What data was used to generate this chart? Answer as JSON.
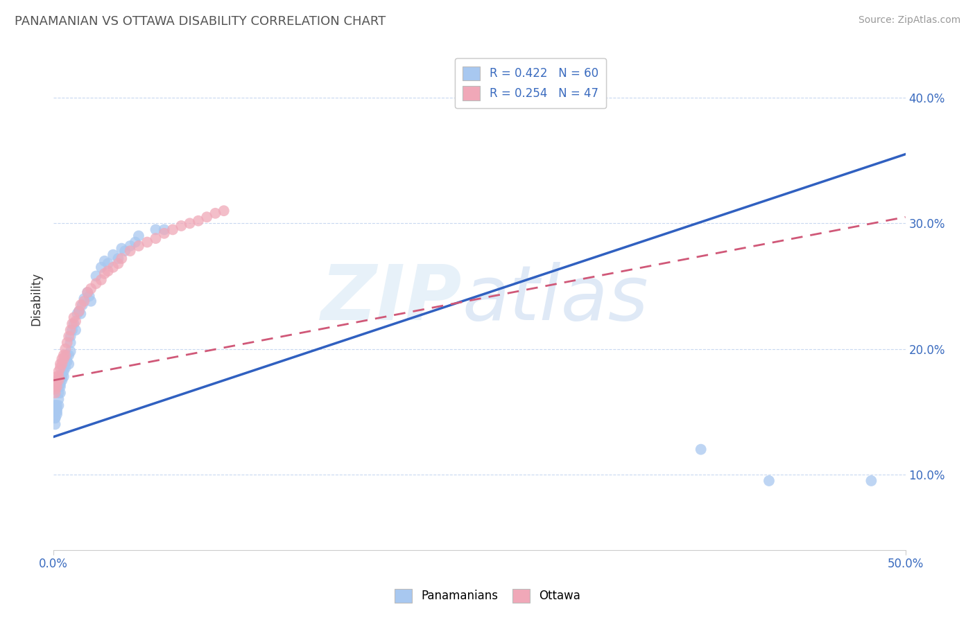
{
  "title": "PANAMANIAN VS OTTAWA DISABILITY CORRELATION CHART",
  "source": "Source: ZipAtlas.com",
  "ylabel": "Disability",
  "xlim": [
    0.0,
    0.5
  ],
  "ylim": [
    0.04,
    0.44
  ],
  "xtick_positions": [
    0.0,
    0.5
  ],
  "xtick_labels": [
    "0.0%",
    "50.0%"
  ],
  "yticks": [
    0.1,
    0.2,
    0.3,
    0.4
  ],
  "ytick_labels": [
    "10.0%",
    "20.0%",
    "30.0%",
    "40.0%"
  ],
  "blue_color": "#a8c8f0",
  "pink_color": "#f0a8b8",
  "blue_line_color": "#3060c0",
  "pink_line_color": "#d05878",
  "legend_blue_label": "R = 0.422   N = 60",
  "legend_pink_label": "R = 0.254   N = 47",
  "legend_panamanians": "Panamanians",
  "legend_ottawa": "Ottawa",
  "blue_line_x0": 0.0,
  "blue_line_y0": 0.13,
  "blue_line_x1": 0.5,
  "blue_line_y1": 0.355,
  "pink_line_x0": 0.0,
  "pink_line_y0": 0.175,
  "pink_line_x1": 0.5,
  "pink_line_y1": 0.305,
  "blue_scatter_x": [
    0.001,
    0.001,
    0.001,
    0.001,
    0.001,
    0.001,
    0.002,
    0.002,
    0.002,
    0.002,
    0.003,
    0.003,
    0.003,
    0.003,
    0.004,
    0.004,
    0.004,
    0.004,
    0.005,
    0.005,
    0.005,
    0.006,
    0.006,
    0.006,
    0.007,
    0.007,
    0.008,
    0.008,
    0.009,
    0.009,
    0.01,
    0.01,
    0.01,
    0.011,
    0.012,
    0.013,
    0.014,
    0.015,
    0.016,
    0.017,
    0.018,
    0.02,
    0.021,
    0.022,
    0.025,
    0.028,
    0.03,
    0.032,
    0.035,
    0.038,
    0.04,
    0.042,
    0.045,
    0.048,
    0.05,
    0.06,
    0.065,
    0.38,
    0.42,
    0.48
  ],
  "blue_scatter_y": [
    0.155,
    0.155,
    0.15,
    0.145,
    0.145,
    0.14,
    0.155,
    0.152,
    0.15,
    0.148,
    0.17,
    0.165,
    0.16,
    0.155,
    0.175,
    0.172,
    0.17,
    0.165,
    0.18,
    0.178,
    0.175,
    0.185,
    0.182,
    0.178,
    0.19,
    0.185,
    0.195,
    0.19,
    0.195,
    0.188,
    0.21,
    0.205,
    0.198,
    0.215,
    0.22,
    0.215,
    0.228,
    0.23,
    0.228,
    0.235,
    0.24,
    0.245,
    0.242,
    0.238,
    0.258,
    0.265,
    0.27,
    0.268,
    0.275,
    0.272,
    0.28,
    0.278,
    0.282,
    0.285,
    0.29,
    0.295,
    0.295,
    0.12,
    0.095,
    0.095
  ],
  "pink_scatter_x": [
    0.001,
    0.001,
    0.001,
    0.002,
    0.002,
    0.002,
    0.003,
    0.003,
    0.003,
    0.004,
    0.004,
    0.005,
    0.005,
    0.006,
    0.006,
    0.007,
    0.007,
    0.008,
    0.009,
    0.01,
    0.011,
    0.012,
    0.013,
    0.015,
    0.016,
    0.018,
    0.02,
    0.022,
    0.025,
    0.028,
    0.03,
    0.032,
    0.035,
    0.038,
    0.04,
    0.045,
    0.05,
    0.055,
    0.06,
    0.065,
    0.07,
    0.075,
    0.08,
    0.085,
    0.09,
    0.095,
    0.1
  ],
  "pink_scatter_y": [
    0.172,
    0.168,
    0.165,
    0.178,
    0.175,
    0.17,
    0.182,
    0.178,
    0.175,
    0.188,
    0.185,
    0.192,
    0.188,
    0.195,
    0.192,
    0.2,
    0.195,
    0.205,
    0.21,
    0.215,
    0.22,
    0.225,
    0.222,
    0.23,
    0.235,
    0.238,
    0.245,
    0.248,
    0.252,
    0.255,
    0.26,
    0.262,
    0.265,
    0.268,
    0.272,
    0.278,
    0.282,
    0.285,
    0.288,
    0.292,
    0.295,
    0.298,
    0.3,
    0.302,
    0.305,
    0.308,
    0.31
  ]
}
